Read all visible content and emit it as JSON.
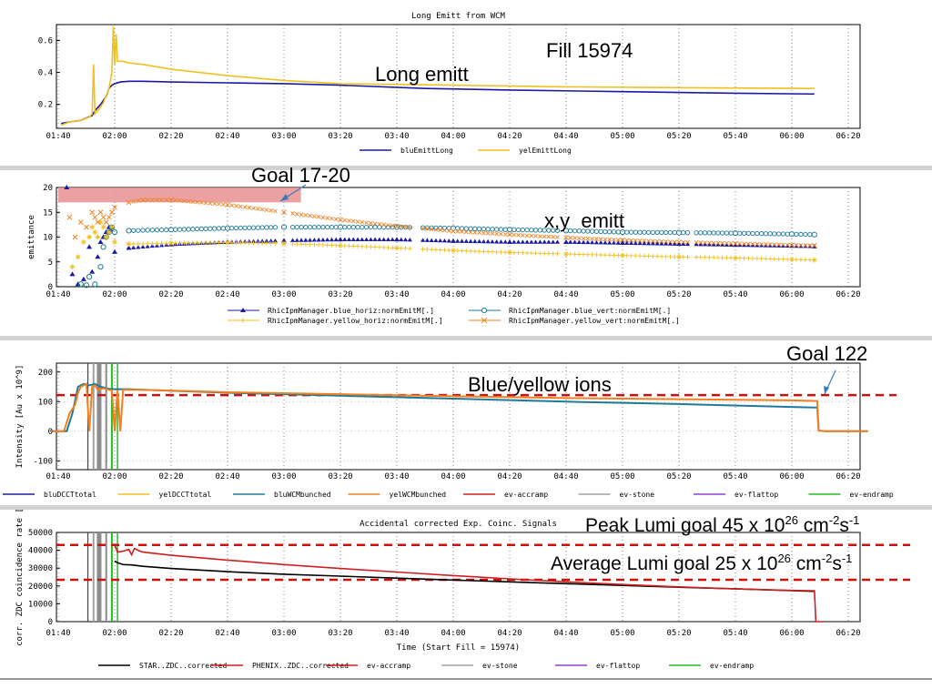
{
  "fill_label": "Fill 15974",
  "annotations": {
    "long_emitt": "Long emitt",
    "goal_17_20": "Goal 17-20",
    "xy_emitt": "x,y  emitt",
    "goal_122": "Goal 122",
    "ions": "Blue/yellow ions",
    "peak_lumi_text": "Peak Lumi goal 45 x 10",
    "avg_lumi_text": "Average Lumi goal 25 x 10",
    "exp26": "26",
    "unit_cm": " cm",
    "exp_m2": "-2",
    "unit_s": "s",
    "exp_m1": "-1"
  },
  "colors": {
    "blue_line": "#1a1aa0",
    "yellow_line": "#f0c020",
    "teal_line": "#1f7a9a",
    "orange_line": "#f08020",
    "red_line": "#cc2020",
    "gray_line": "#a0a0a0",
    "purple_line": "#9040d0",
    "green_line": "#20c020",
    "goal_dash": "#cc1010",
    "goal_band": "#e89090",
    "black_line": "#000000"
  },
  "time_ticks": [
    "01:40",
    "02:00",
    "02:20",
    "02:40",
    "03:00",
    "03:20",
    "03:40",
    "04:00",
    "04:20",
    "04:40",
    "05:00",
    "05:20",
    "05:40",
    "06:00",
    "06:20"
  ],
  "chart_data": [
    {
      "type": "line",
      "title": "Long Emitt from WCM",
      "xlabel": "",
      "ylabel": "",
      "xlim_min": [
        100,
        385
      ],
      "ylim": [
        0.05,
        0.7
      ],
      "yticks": [
        {
          "v": 0.2,
          "label": "0.2"
        },
        {
          "v": 0.4,
          "label": "0.4"
        },
        {
          "v": 0.6,
          "label": "0.6"
        }
      ],
      "series": [
        {
          "name": "bluEmittLong",
          "color": "blue_line",
          "x": [
            101,
            104,
            108,
            112,
            113,
            115,
            117,
            118,
            119,
            120,
            122,
            125,
            130,
            140,
            160,
            180,
            200,
            230,
            260,
            300,
            340,
            368
          ],
          "y": [
            0.08,
            0.09,
            0.1,
            0.13,
            0.16,
            0.2,
            0.25,
            0.3,
            0.32,
            0.33,
            0.34,
            0.345,
            0.345,
            0.34,
            0.335,
            0.33,
            0.32,
            0.3,
            0.29,
            0.28,
            0.27,
            0.265
          ]
        },
        {
          "name": "yelEmittLong",
          "color": "yellow_line",
          "x": [
            101,
            104,
            108,
            111,
            112,
            112.5,
            113,
            114,
            116,
            118,
            119,
            119.5,
            120,
            120.5,
            121,
            123,
            125,
            130,
            140,
            160,
            180,
            200,
            240,
            280,
            320,
            368
          ],
          "y": [
            0.07,
            0.09,
            0.1,
            0.12,
            0.14,
            0.45,
            0.14,
            0.16,
            0.21,
            0.3,
            0.4,
            0.69,
            0.45,
            0.64,
            0.47,
            0.47,
            0.46,
            0.45,
            0.42,
            0.38,
            0.35,
            0.33,
            0.32,
            0.31,
            0.305,
            0.3
          ]
        }
      ]
    },
    {
      "type": "scatter",
      "title": "",
      "xlabel": "",
      "ylabel": "emittance",
      "xlim_min": [
        100,
        385
      ],
      "ylim": [
        0,
        20
      ],
      "yticks": [
        {
          "v": 0,
          "label": "0"
        },
        {
          "v": 5,
          "label": "5"
        },
        {
          "v": 10,
          "label": "10"
        },
        {
          "v": 15,
          "label": "15"
        },
        {
          "v": 20,
          "label": "20"
        }
      ],
      "goal_band": [
        17,
        20
      ],
      "goal_band_x": [
        100,
        186
      ],
      "series": [
        {
          "name": "RhicIpmManager.blue_horiz:normEmitM[.]",
          "color": "blue_line",
          "marker": "triangle",
          "x": [
            103,
            105,
            107,
            109,
            111,
            112,
            114,
            115,
            116,
            117,
            118,
            118.5,
            119,
            120,
            125,
            140,
            160,
            180,
            200,
            220,
            240,
            260,
            280,
            300,
            320,
            340,
            360,
            368
          ],
          "y": [
            20,
            2.5,
            0.5,
            1.5,
            8,
            3,
            6,
            9,
            10,
            11,
            12,
            11.5,
            12,
            7,
            7.8,
            8.5,
            9,
            9.3,
            9.5,
            9.5,
            9.2,
            9,
            9,
            8.8,
            8.6,
            8.4,
            8.2,
            8.1
          ]
        },
        {
          "name": "RhicIpmManager.blue_vert:normEmitM[.]",
          "color": "teal_line",
          "marker": "circle",
          "x": [
            108,
            110,
            111,
            113,
            115,
            116,
            117,
            118,
            119,
            120,
            125,
            140,
            160,
            180,
            200,
            220,
            240,
            260,
            280,
            300,
            320,
            340,
            360,
            368
          ],
          "y": [
            0.5,
            0.3,
            2,
            0.5,
            4,
            8,
            10,
            11,
            12,
            11,
            11.3,
            11.5,
            11.8,
            12,
            12,
            12,
            11.8,
            11.5,
            11.3,
            11,
            10.9,
            10.8,
            10.6,
            10.5
          ]
        },
        {
          "name": "RhicIpmManager.yellow_horiz:normEmitM[.]",
          "color": "yellow_line",
          "marker": "star",
          "x": [
            105,
            107,
            109,
            111,
            112,
            113,
            114,
            115,
            116,
            117,
            118,
            119,
            120,
            125,
            140,
            160,
            180,
            200,
            220,
            240,
            260,
            280,
            300,
            320,
            340,
            360,
            368
          ],
          "y": [
            4,
            6,
            9,
            10,
            12,
            11,
            10,
            13,
            12,
            10,
            11,
            12,
            9,
            8.6,
            8.8,
            8.9,
            8.7,
            8.3,
            7.8,
            7.3,
            6.9,
            6.6,
            6.3,
            6,
            5.8,
            5.5,
            5.4
          ]
        },
        {
          "name": "RhicIpmManager.yellow_vert:normEmitM[.]",
          "color": "orange_line",
          "marker": "x",
          "x": [
            104,
            106,
            108,
            110,
            112,
            113,
            114,
            115,
            116,
            117,
            118,
            119,
            120,
            125,
            130,
            140,
            160,
            180,
            200,
            220,
            240,
            260,
            280,
            300,
            320,
            340,
            360,
            368
          ],
          "y": [
            14,
            10,
            13,
            12,
            15,
            14,
            13,
            15,
            14,
            13,
            14,
            15,
            16,
            17,
            17.5,
            17.5,
            16.5,
            15,
            13.5,
            12.2,
            11.2,
            10.5,
            9.9,
            9.4,
            9,
            8.7,
            8.4,
            8.3
          ]
        }
      ]
    },
    {
      "type": "line",
      "title": "",
      "xlabel": "",
      "ylabel": "Intensity [Au x 10^9]",
      "xlim_min": [
        100,
        388
      ],
      "ylim": [
        -130,
        230
      ],
      "yticks": [
        {
          "v": -100,
          "label": "-100"
        },
        {
          "v": 0,
          "label": "0"
        },
        {
          "v": 100,
          "label": "100"
        },
        {
          "v": 200,
          "label": "200"
        }
      ],
      "goal_line": 122,
      "series": [
        {
          "name": "bluDCCTtotal",
          "color": "blue_line",
          "x": [],
          "y": []
        },
        {
          "name": "yelDCCTtotal",
          "color": "yellow_line",
          "x": [],
          "y": []
        },
        {
          "name": "bluWCMbunched",
          "color": "teal_line",
          "x": [
            98,
            103,
            105,
            107,
            109,
            111,
            113,
            115,
            116,
            117,
            118,
            120,
            125,
            130,
            160,
            200,
            240,
            280,
            320,
            360,
            369,
            369.5,
            372,
            387
          ],
          "y": [
            0,
            0,
            60,
            150,
            160,
            155,
            160,
            150,
            148,
            145,
            143,
            142,
            142,
            140,
            130,
            120,
            110,
            100,
            92,
            82,
            80,
            2,
            0,
            0
          ]
        },
        {
          "name": "yelWCMbunched",
          "color": "orange_line",
          "x": [
            98,
            102,
            104,
            106,
            107,
            108,
            110,
            111,
            112,
            113,
            114,
            116,
            118,
            119,
            120,
            121,
            122,
            123,
            125,
            130,
            160,
            200,
            240,
            280,
            320,
            360,
            369,
            369.5,
            372,
            387
          ],
          "y": [
            0,
            0,
            60,
            90,
            130,
            150,
            160,
            0,
            150,
            155,
            140,
            145,
            140,
            138,
            0,
            140,
            0,
            140,
            140,
            140,
            132,
            125,
            118,
            112,
            108,
            104,
            102,
            2,
            0,
            0
          ]
        },
        {
          "name": "ev-accramp",
          "color": "red_line",
          "x": [],
          "y": []
        },
        {
          "name": "ev-stone",
          "color": "gray_line",
          "x": [],
          "y": []
        },
        {
          "name": "ev-flattop",
          "color": "purple_line",
          "x": [],
          "y": []
        },
        {
          "name": "ev-endramp",
          "color": "green_line",
          "x": [],
          "y": []
        }
      ]
    },
    {
      "type": "line",
      "title": "Accidental corrected Exp. Coinc. Signals",
      "xlabel": "Time (Start Fill = 15974)",
      "ylabel": "corr. ZDC coincidence rate [",
      "xlim_min": [
        100,
        385
      ],
      "ylim": [
        0,
        50000
      ],
      "yticks": [
        {
          "v": 0,
          "label": "0"
        },
        {
          "v": 10000,
          "label": "10000"
        },
        {
          "v": 20000,
          "label": "20000"
        },
        {
          "v": 30000,
          "label": "30000"
        },
        {
          "v": 40000,
          "label": "40000"
        },
        {
          "v": 50000,
          "label": "50000"
        }
      ],
      "goal_lines": [
        43000,
        23500
      ],
      "series": [
        {
          "name": "STAR..ZDC..corrected",
          "color": "black_line",
          "x": [
            120,
            121,
            123,
            126,
            130,
            140,
            160,
            180,
            200,
            220,
            240,
            260,
            280,
            300,
            320,
            340,
            360,
            368
          ],
          "y": [
            34000,
            33000,
            32000,
            31800,
            31000,
            29800,
            28000,
            26600,
            25500,
            24400,
            23300,
            22300,
            21300,
            20300,
            19300,
            18400,
            17400,
            17000
          ]
        },
        {
          "name": "PHENIX..ZDC..corrected",
          "color": "red_line",
          "x": [
            120,
            121,
            123,
            125,
            126,
            127,
            129,
            130,
            140,
            160,
            180,
            200,
            220,
            240,
            260,
            280,
            300,
            320,
            340,
            360,
            368,
            368.5,
            371
          ],
          "y": [
            43000,
            39000,
            39500,
            40500,
            37500,
            41000,
            39500,
            39000,
            37200,
            34500,
            32000,
            29800,
            27800,
            25800,
            24000,
            22300,
            20800,
            19500,
            18300,
            17500,
            17300,
            0,
            0
          ]
        },
        {
          "name": "ev-accramp",
          "color": "red_line",
          "x": [],
          "y": []
        },
        {
          "name": "ev-stone",
          "color": "gray_line",
          "x": [],
          "y": []
        },
        {
          "name": "ev-flattop",
          "color": "purple_line",
          "x": [],
          "y": []
        },
        {
          "name": "ev-endramp",
          "color": "green_line",
          "x": [],
          "y": []
        }
      ]
    }
  ]
}
